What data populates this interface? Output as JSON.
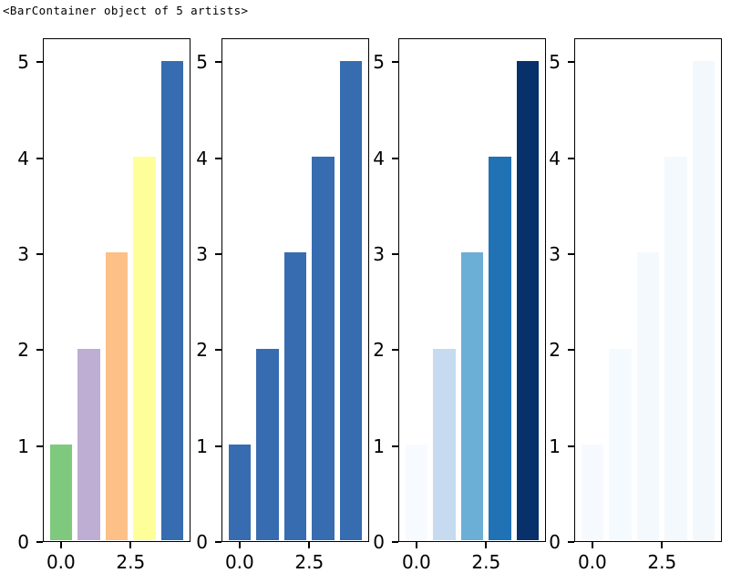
{
  "title": "<BarContainer object of 5 artists>",
  "figure": {
    "background": "#ffffff",
    "spine_color": "#000000",
    "tick_label_color": "#000000"
  },
  "chart_data": [
    {
      "type": "bar",
      "x": [
        0,
        1,
        2,
        3,
        4
      ],
      "values": [
        1,
        2,
        3,
        4,
        5
      ],
      "bar_colors": [
        "#7fc97f",
        "#beaed4",
        "#fdc086",
        "#ffff99",
        "#386cb0"
      ],
      "palette_note": "Accent colormap (green, lavender, orange, yellow, blue)",
      "ytick_labels": [
        "0",
        "1",
        "2",
        "3",
        "4",
        "5"
      ],
      "xticks": [
        {
          "value": 0,
          "label": "0.0"
        },
        {
          "value": 2.5,
          "label": "2.5"
        }
      ],
      "ylim": [
        0,
        5.25
      ],
      "xlim": [
        -0.65,
        4.65
      ],
      "grid": false,
      "legend": null
    },
    {
      "type": "bar",
      "x": [
        0,
        1,
        2,
        3,
        4
      ],
      "values": [
        1,
        2,
        3,
        4,
        5
      ],
      "bar_colors": [
        "#386cb0",
        "#386cb0",
        "#386cb0",
        "#386cb0",
        "#386cb0"
      ],
      "palette_note": "single steel-blue color for all bars",
      "ytick_labels": [
        "0",
        "1",
        "2",
        "3",
        "4",
        "5"
      ],
      "xticks": [
        {
          "value": 0,
          "label": "0.0"
        },
        {
          "value": 2.5,
          "label": "2.5"
        }
      ],
      "ylim": [
        0,
        5.25
      ],
      "xlim": [
        -0.65,
        4.65
      ],
      "grid": false,
      "legend": null
    },
    {
      "type": "bar",
      "x": [
        0,
        1,
        2,
        3,
        4
      ],
      "values": [
        1,
        2,
        3,
        4,
        5
      ],
      "bar_colors": [
        "#f7fbff",
        "#c6dbef",
        "#6baed6",
        "#2171b5",
        "#08306b"
      ],
      "palette_note": "Blues colormap light-to-dark gradient",
      "ytick_labels": [
        "0",
        "1",
        "2",
        "3",
        "4",
        "5"
      ],
      "xticks": [
        {
          "value": 0,
          "label": "0.0"
        },
        {
          "value": 2.5,
          "label": "2.5"
        }
      ],
      "ylim": [
        0,
        5.25
      ],
      "xlim": [
        -0.65,
        4.65
      ],
      "grid": false,
      "legend": null
    },
    {
      "type": "bar",
      "x": [
        0,
        1,
        2,
        3,
        4
      ],
      "values": [
        1,
        2,
        3,
        4,
        5
      ],
      "bar_colors": [
        "#f6fafe",
        "#f5fafe",
        "#f4f9fe",
        "#f3f9fd",
        "#f3f8fd"
      ],
      "palette_note": "all bars near-white very pale blue",
      "ytick_labels": [
        "0",
        "1",
        "2",
        "3",
        "4",
        "5"
      ],
      "xticks": [
        {
          "value": 0,
          "label": "0.0"
        },
        {
          "value": 2.5,
          "label": "2.5"
        }
      ],
      "ylim": [
        0,
        5.25
      ],
      "xlim": [
        -0.65,
        4.65
      ],
      "grid": false,
      "legend": null
    }
  ]
}
